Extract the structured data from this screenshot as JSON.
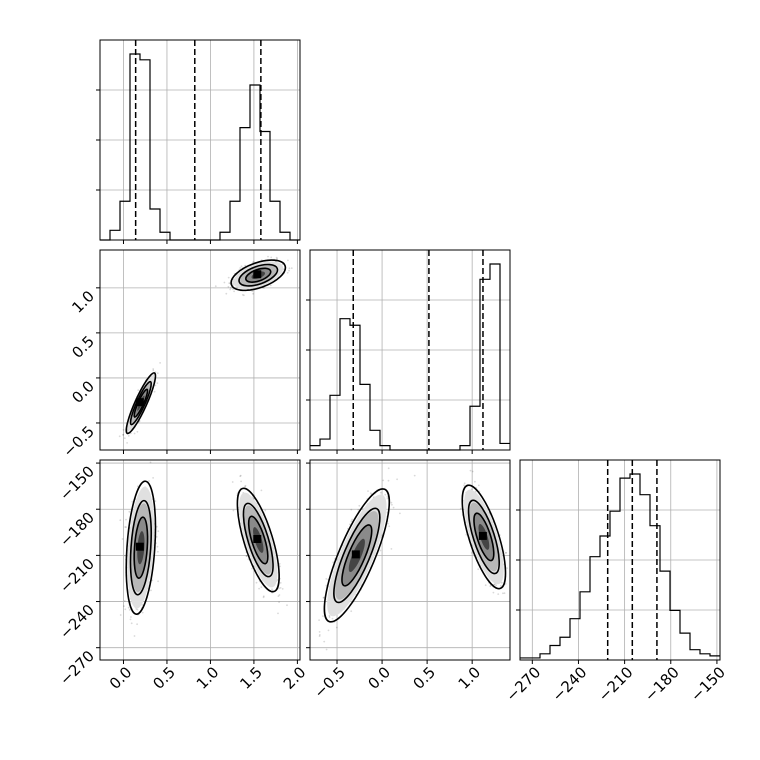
{
  "chart_data": {
    "type": "corner",
    "title": "",
    "grid": true,
    "ticks": {
      "p0": [
        "0.0",
        "0.5",
        "1.0",
        "1.5",
        "2.0"
      ],
      "p1": [
        "−0.5",
        "0.0",
        "0.5",
        "1.0"
      ],
      "p2": [
        "−270",
        "−240",
        "−210",
        "−180",
        "−150"
      ]
    },
    "ranges": {
      "p0": [
        -0.27,
        2.03
      ],
      "p1": [
        -0.8,
        1.42
      ],
      "p2": [
        -278,
        -148
      ]
    },
    "tick_values": {
      "p0": [
        0,
        0.5,
        1.0,
        1.5,
        2.0
      ],
      "p1": [
        -0.5,
        0,
        0.5,
        1.0
      ],
      "p2": [
        -270,
        -240,
        -210,
        -180,
        -150
      ]
    },
    "hist_p0": {
      "bin_edges": [
        -0.27,
        -0.155,
        -0.04,
        0.075,
        0.19,
        0.305,
        0.42,
        0.535,
        0.65,
        0.765,
        0.88,
        0.995,
        1.11,
        1.225,
        1.34,
        1.455,
        1.57,
        1.685,
        1.8,
        1.915,
        2.03
      ],
      "counts": [
        0,
        0.05,
        0.2,
        0.96,
        0.93,
        0.16,
        0.04,
        0,
        0,
        0,
        0,
        0,
        0.04,
        0.2,
        0.58,
        0.8,
        0.56,
        0.2,
        0.04,
        0
      ],
      "quantiles": [
        0.14,
        0.82,
        1.58
      ]
    },
    "hist_p1": {
      "bin_edges": [
        -0.8,
        -0.689,
        -0.578,
        -0.467,
        -0.356,
        -0.245,
        -0.134,
        -0.023,
        0.088,
        0.199,
        0.31,
        0.421,
        0.532,
        0.643,
        0.754,
        0.865,
        0.976,
        1.087,
        1.198,
        1.309,
        1.42
      ],
      "counts": [
        0.02,
        0.05,
        0.25,
        0.6,
        0.57,
        0.3,
        0.09,
        0.02,
        0,
        0,
        0,
        0,
        0,
        0,
        0,
        0.02,
        0.2,
        0.78,
        0.85,
        0.03
      ],
      "quantiles": [
        -0.32,
        0.52,
        1.12
      ]
    },
    "hist_p2": {
      "bin_edges": [
        -278,
        -271.5,
        -265,
        -258.5,
        -252,
        -245.5,
        -239,
        -232.5,
        -226,
        -219.5,
        -213,
        -206.5,
        -200,
        -193.5,
        -187,
        -180.5,
        -174,
        -167.5,
        -161,
        -154.5,
        -148
      ],
      "counts": [
        0.01,
        0.01,
        0.03,
        0.07,
        0.11,
        0.2,
        0.33,
        0.5,
        0.6,
        0.72,
        0.88,
        0.9,
        0.8,
        0.65,
        0.43,
        0.24,
        0.13,
        0.05,
        0.03,
        0.02
      ],
      "quantiles": [
        -221,
        -205,
        -189
      ]
    },
    "scatter": [
      {
        "x": "p0",
        "y": "p1",
        "clusters": [
          {
            "cx": 0.2,
            "cy": -0.28,
            "sx": 0.07,
            "sy": 0.14,
            "rho": 0.9,
            "n": 700
          },
          {
            "cx": 1.55,
            "cy": 1.14,
            "sx": 0.13,
            "sy": 0.07,
            "rho": 0.5,
            "n": 700
          }
        ]
      },
      {
        "x": "p0",
        "y": "p2",
        "clusters": [
          {
            "cx": 0.2,
            "cy": -205,
            "sx": 0.07,
            "sy": 18,
            "rho": 0.3,
            "n": 700
          },
          {
            "cx": 1.55,
            "cy": -200,
            "sx": 0.1,
            "sy": 14,
            "rho": -0.7,
            "n": 700
          }
        ]
      },
      {
        "x": "p1",
        "y": "p2",
        "clusters": [
          {
            "cx": -0.28,
            "cy": -210,
            "sx": 0.15,
            "sy": 18,
            "rho": 0.8,
            "n": 700
          },
          {
            "cx": 1.13,
            "cy": -198,
            "sx": 0.1,
            "sy": 14,
            "rho": -0.7,
            "n": 700
          }
        ]
      }
    ]
  }
}
